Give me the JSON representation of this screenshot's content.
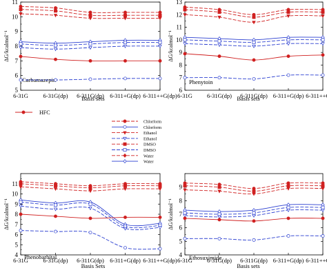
{
  "figure": {
    "x_tick_labels": [
      "6-31G",
      "6-31G(dp)",
      "6-311G(dp)",
      "6-311+G(dp)",
      "6-311++G(dp)"
    ],
    "xlabel": "Basis sets",
    "ylabel": "ΔG/kcalmol⁻¹"
  },
  "legend": {
    "entries": [
      {
        "label": "HFC",
        "color": "#d02020",
        "marker": "filled-circle",
        "dash": "solid"
      },
      {
        "label": "Chlorform",
        "color": "#d02020",
        "marker": "filled-circle",
        "dash": "dash"
      },
      {
        "label": "Chlorform",
        "color": "#2a3ed0",
        "marker": "open-circle",
        "dash": "solid"
      },
      {
        "label": "Ethanol",
        "color": "#d02020",
        "marker": "filled-triangle-down",
        "dash": "dash"
      },
      {
        "label": "Ethanol",
        "color": "#2a3ed0",
        "marker": "open-triangle-down",
        "dash": "dash"
      },
      {
        "label": "DMSO",
        "color": "#d02020",
        "marker": "filled-square",
        "dash": "dash"
      },
      {
        "label": "DMSO",
        "color": "#2a3ed0",
        "marker": "open-square",
        "dash": "dash"
      },
      {
        "label": "Water",
        "color": "#d02020",
        "marker": "filled-diamond",
        "dash": "dash"
      },
      {
        "label": "Water",
        "color": "#2a3ed0",
        "marker": "open-diamond",
        "dash": "solid"
      }
    ]
  },
  "chart_data": [
    {
      "type": "line",
      "title": "Carbamazepin",
      "xlabel": "Basis sets",
      "ylabel": "ΔG/kcalmol⁻¹",
      "ylim": [
        5,
        11
      ],
      "yticks": [
        5,
        6,
        7,
        8,
        9,
        10,
        11
      ],
      "categories": [
        "6-31G",
        "6-31G(dp)",
        "6-311G(dp)",
        "6-311+G(dp)",
        "6-311++G(dp)"
      ],
      "series": [
        {
          "values": [
            10.7,
            10.6,
            10.3,
            10.3,
            10.3
          ],
          "color": "#d02020",
          "dash": "dash",
          "marker": "filled-circle"
        },
        {
          "values": [
            10.5,
            10.4,
            10.1,
            10.1,
            10.1
          ],
          "color": "#d02020",
          "dash": "dash",
          "marker": "filled-square"
        },
        {
          "values": [
            10.2,
            10.1,
            9.9,
            9.9,
            9.9
          ],
          "color": "#d02020",
          "dash": "dash",
          "marker": "filled-triangle-down"
        },
        {
          "values": [
            8.3,
            8.2,
            8.3,
            8.4,
            8.4
          ],
          "color": "#2a3ed0",
          "dash": "solid",
          "marker": "open-diamond"
        },
        {
          "values": [
            8.15,
            8.05,
            8.15,
            8.25,
            8.25
          ],
          "color": "#2a3ed0",
          "dash": "dash",
          "marker": "open-square"
        },
        {
          "values": [
            7.9,
            7.8,
            7.9,
            8.0,
            8.0
          ],
          "color": "#2a3ed0",
          "dash": "dash",
          "marker": "open-triangle-down"
        },
        {
          "values": [
            7.3,
            7.1,
            7.0,
            7.0,
            7.0
          ],
          "color": "#d02020",
          "dash": "solid",
          "marker": "filled-circle"
        },
        {
          "values": [
            5.7,
            5.7,
            5.75,
            5.8,
            5.8
          ],
          "color": "#2a3ed0",
          "dash": "dash",
          "marker": "open-circle"
        }
      ]
    },
    {
      "type": "line",
      "title": "Phenytoin",
      "xlabel": "Basis sets",
      "ylabel": "ΔG/kcalmol⁻¹",
      "ylim": [
        6,
        13
      ],
      "yticks": [
        6,
        7,
        8,
        9,
        10,
        11,
        12,
        13
      ],
      "categories": [
        "6-31G",
        "6-31G(dp)",
        "6-311G(dp)",
        "6-311+G(dp)",
        "6-311++G(dp)"
      ],
      "series": [
        {
          "values": [
            12.6,
            12.4,
            12.0,
            12.4,
            12.4
          ],
          "color": "#d02020",
          "dash": "dash",
          "marker": "filled-circle"
        },
        {
          "values": [
            12.4,
            12.2,
            11.8,
            12.2,
            12.2
          ],
          "color": "#d02020",
          "dash": "dash",
          "marker": "filled-square"
        },
        {
          "values": [
            12.0,
            11.8,
            11.4,
            11.9,
            11.9
          ],
          "color": "#d02020",
          "dash": "dash",
          "marker": "filled-triangle-down"
        },
        {
          "values": [
            10.2,
            10.1,
            10.0,
            10.2,
            10.2
          ],
          "color": "#2a3ed0",
          "dash": "solid",
          "marker": "open-diamond"
        },
        {
          "values": [
            10.0,
            9.9,
            9.8,
            10.0,
            10.0
          ],
          "color": "#2a3ed0",
          "dash": "dash",
          "marker": "open-square"
        },
        {
          "values": [
            9.7,
            9.6,
            9.5,
            9.7,
            9.7
          ],
          "color": "#2a3ed0",
          "dash": "dash",
          "marker": "open-triangle-down"
        },
        {
          "values": [
            8.9,
            8.7,
            8.4,
            8.7,
            8.8
          ],
          "color": "#d02020",
          "dash": "solid",
          "marker": "filled-circle"
        },
        {
          "values": [
            7.0,
            7.0,
            6.9,
            7.2,
            7.2
          ],
          "color": "#2a3ed0",
          "dash": "dash",
          "marker": "open-circle"
        }
      ]
    },
    {
      "type": "line",
      "title": "Phenobarbital",
      "xlabel": "Basis Sets",
      "ylabel": "ΔG/kcalmol⁻¹",
      "ylim": [
        4,
        12
      ],
      "yticks": [
        4,
        5,
        6,
        7,
        8,
        9,
        10,
        11
      ],
      "categories": [
        "6-31G",
        "6-31G(dp)",
        "6-311G(dp)",
        "6-311+G(dp)",
        "6-311++G(dp)"
      ],
      "series": [
        {
          "values": [
            11.2,
            11.0,
            10.8,
            11.0,
            11.0
          ],
          "color": "#d02020",
          "dash": "dash",
          "marker": "filled-circle"
        },
        {
          "values": [
            11.0,
            10.8,
            10.6,
            10.8,
            10.8
          ],
          "color": "#d02020",
          "dash": "dash",
          "marker": "filled-square"
        },
        {
          "values": [
            10.7,
            10.5,
            10.3,
            10.5,
            10.5
          ],
          "color": "#d02020",
          "dash": "dash",
          "marker": "filled-triangle-down"
        },
        {
          "values": [
            9.4,
            9.1,
            9.2,
            7.0,
            7.1
          ],
          "color": "#2a3ed0",
          "dash": "solid",
          "marker": "open-diamond"
        },
        {
          "values": [
            9.2,
            8.9,
            9.0,
            6.8,
            6.9
          ],
          "color": "#2a3ed0",
          "dash": "dash",
          "marker": "open-square"
        },
        {
          "values": [
            8.8,
            8.5,
            8.6,
            6.6,
            6.7
          ],
          "color": "#2a3ed0",
          "dash": "dash",
          "marker": "open-triangle-down"
        },
        {
          "values": [
            8.0,
            7.8,
            7.6,
            7.7,
            7.7
          ],
          "color": "#d02020",
          "dash": "solid",
          "marker": "filled-circle"
        },
        {
          "values": [
            6.4,
            6.3,
            6.2,
            4.7,
            4.6
          ],
          "color": "#2a3ed0",
          "dash": "dash",
          "marker": "open-circle"
        }
      ]
    },
    {
      "type": "line",
      "title": "Ethosuximide",
      "xlabel": "Basis sets",
      "ylabel": "ΔG/kcalmol⁻¹",
      "ylim": [
        4,
        10
      ],
      "yticks": [
        4,
        5,
        6,
        7,
        8,
        9
      ],
      "categories": [
        "6-31G",
        "6-31G(dp)",
        "6-311G(dp)",
        "6-311+G(dp)",
        "6-311++G(dp)"
      ],
      "series": [
        {
          "values": [
            9.3,
            9.2,
            8.9,
            9.3,
            9.3
          ],
          "color": "#d02020",
          "dash": "dash",
          "marker": "filled-circle"
        },
        {
          "values": [
            9.1,
            9.0,
            8.7,
            9.1,
            9.1
          ],
          "color": "#d02020",
          "dash": "dash",
          "marker": "filled-square"
        },
        {
          "values": [
            8.8,
            8.7,
            8.5,
            8.9,
            8.9
          ],
          "color": "#d02020",
          "dash": "dash",
          "marker": "filled-triangle-down"
        },
        {
          "values": [
            7.3,
            7.2,
            7.3,
            7.7,
            7.7
          ],
          "color": "#2a3ed0",
          "dash": "solid",
          "marker": "open-diamond"
        },
        {
          "values": [
            7.1,
            7.0,
            7.1,
            7.5,
            7.5
          ],
          "color": "#2a3ed0",
          "dash": "dash",
          "marker": "open-square"
        },
        {
          "values": [
            6.9,
            6.8,
            6.9,
            7.3,
            7.3
          ],
          "color": "#2a3ed0",
          "dash": "dash",
          "marker": "open-triangle-down"
        },
        {
          "values": [
            6.7,
            6.6,
            6.5,
            6.7,
            6.7
          ],
          "color": "#d02020",
          "dash": "solid",
          "marker": "filled-circle"
        },
        {
          "values": [
            5.2,
            5.2,
            5.1,
            5.4,
            5.4
          ],
          "color": "#2a3ed0",
          "dash": "dash",
          "marker": "open-circle"
        }
      ]
    }
  ]
}
